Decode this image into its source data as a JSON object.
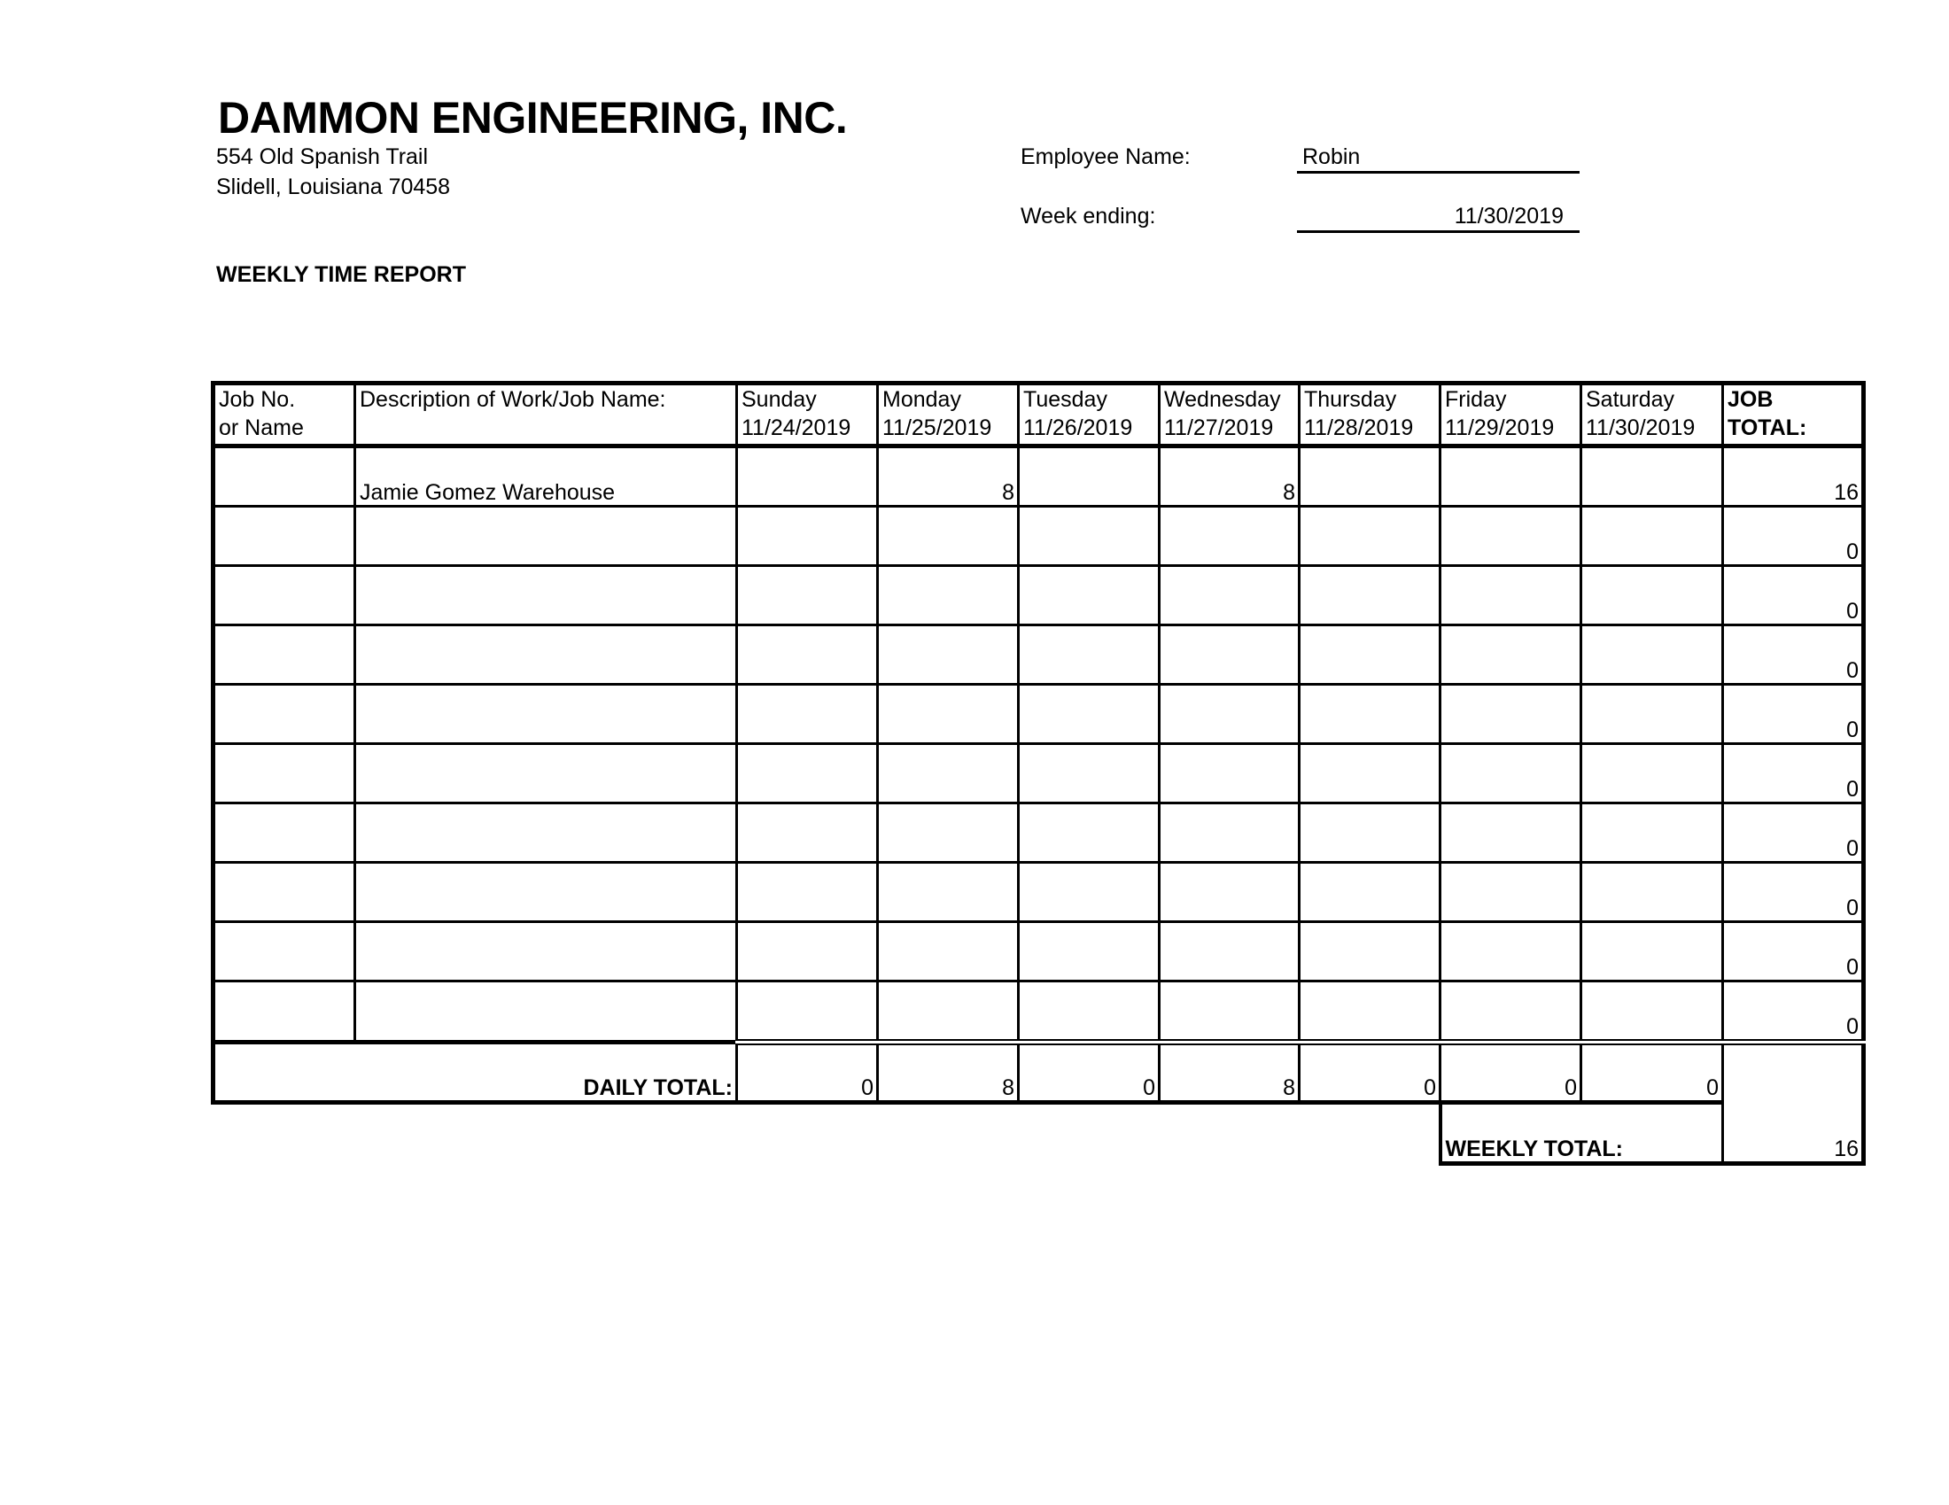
{
  "company": {
    "name": "DAMMON ENGINEERING, INC.",
    "address_line1": "554 Old Spanish Trail",
    "address_line2": "Slidell, Louisiana  70458"
  },
  "employee": {
    "label": "Employee Name:",
    "value": "Robin"
  },
  "week_ending": {
    "label": "Week ending:",
    "value": "11/30/2019"
  },
  "report_title": "WEEKLY TIME REPORT",
  "table": {
    "headers": [
      {
        "line1": "Job No.",
        "line2": "or Name"
      },
      {
        "line1": "Description of Work/Job Name:",
        "line2": ""
      },
      {
        "line1": "Sunday",
        "line2": "11/24/2019"
      },
      {
        "line1": "Monday",
        "line2": "11/25/2019"
      },
      {
        "line1": "Tuesday",
        "line2": "11/26/2019"
      },
      {
        "line1": "Wednesday",
        "line2": "11/27/2019"
      },
      {
        "line1": "Thursday",
        "line2": "11/28/2019"
      },
      {
        "line1": "Friday",
        "line2": "11/29/2019"
      },
      {
        "line1": "Saturday",
        "line2": "11/30/2019"
      },
      {
        "line1": "JOB",
        "line2": "TOTAL:"
      }
    ],
    "rows": [
      {
        "job": "",
        "description": "Jamie Gomez Warehouse",
        "days": [
          "",
          "8",
          "",
          "8",
          "",
          "",
          ""
        ],
        "total": "16"
      },
      {
        "job": "",
        "description": "",
        "days": [
          "",
          "",
          "",
          "",
          "",
          "",
          ""
        ],
        "total": "0"
      },
      {
        "job": "",
        "description": "",
        "days": [
          "",
          "",
          "",
          "",
          "",
          "",
          ""
        ],
        "total": "0"
      },
      {
        "job": "",
        "description": "",
        "days": [
          "",
          "",
          "",
          "",
          "",
          "",
          ""
        ],
        "total": "0"
      },
      {
        "job": "",
        "description": "",
        "days": [
          "",
          "",
          "",
          "",
          "",
          "",
          ""
        ],
        "total": "0"
      },
      {
        "job": "",
        "description": "",
        "days": [
          "",
          "",
          "",
          "",
          "",
          "",
          ""
        ],
        "total": "0"
      },
      {
        "job": "",
        "description": "",
        "days": [
          "",
          "",
          "",
          "",
          "",
          "",
          ""
        ],
        "total": "0"
      },
      {
        "job": "",
        "description": "",
        "days": [
          "",
          "",
          "",
          "",
          "",
          "",
          ""
        ],
        "total": "0"
      },
      {
        "job": "",
        "description": "",
        "days": [
          "",
          "",
          "",
          "",
          "",
          "",
          ""
        ],
        "total": "0"
      },
      {
        "job": "",
        "description": "",
        "days": [
          "",
          "",
          "",
          "",
          "",
          "",
          ""
        ],
        "total": "0"
      }
    ],
    "daily_total_label": "DAILY TOTAL:",
    "daily_totals": [
      "0",
      "8",
      "0",
      "8",
      "0",
      "0",
      "0"
    ],
    "weekly_total_label": "WEEKLY TOTAL:",
    "weekly_total": "16"
  }
}
